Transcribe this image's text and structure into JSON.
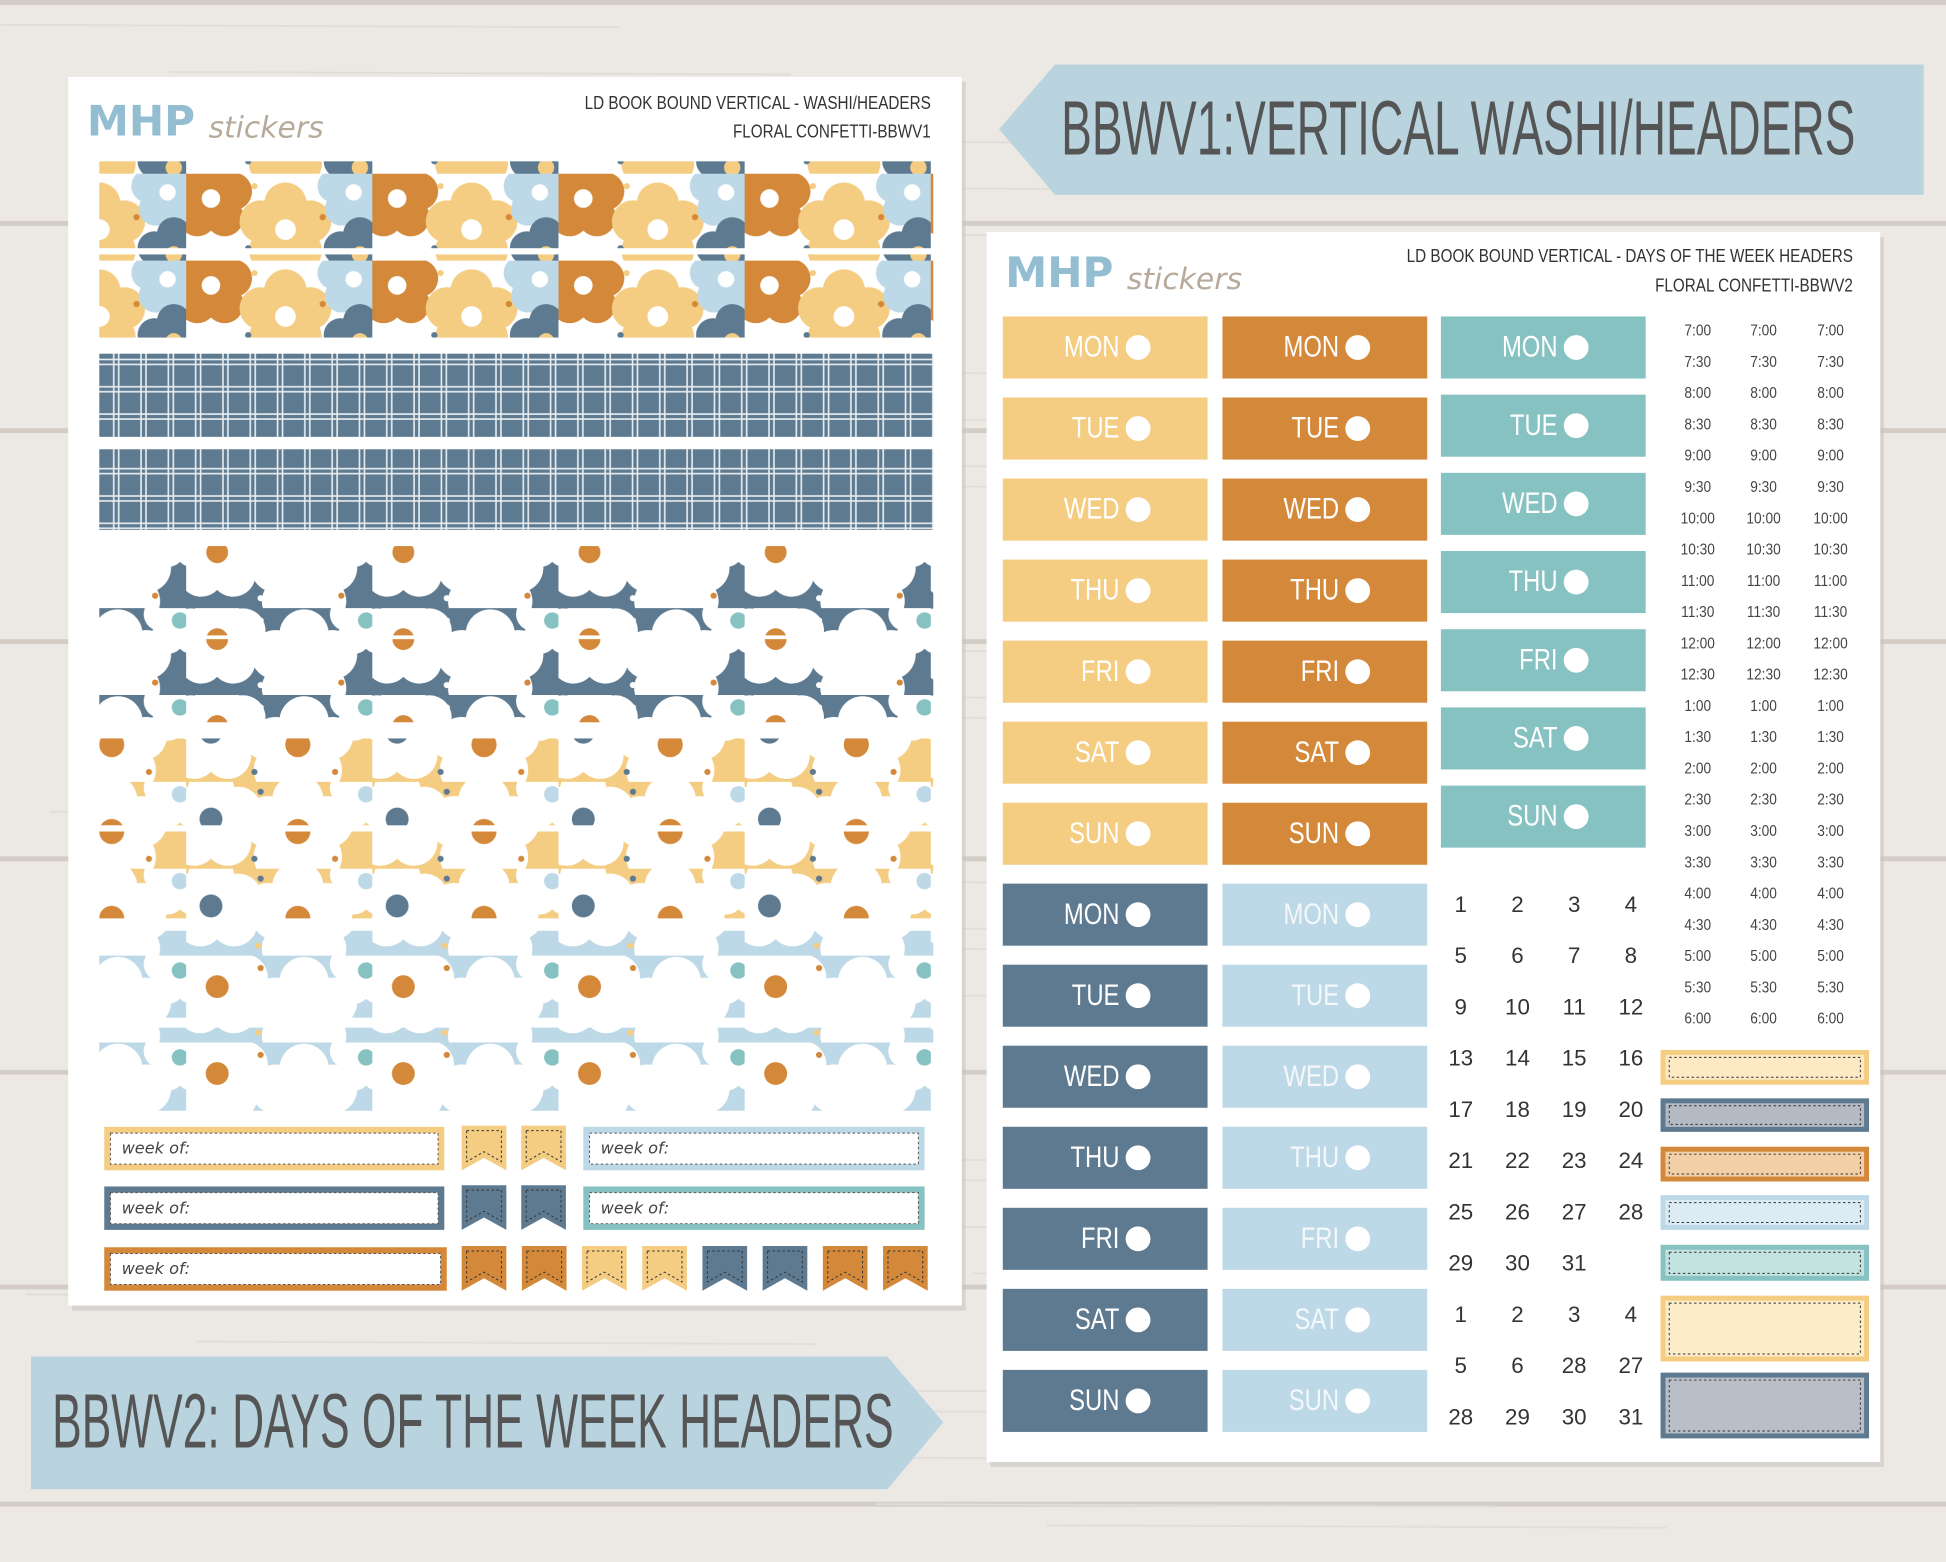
{
  "banners": [
    "BBWV1:VERTICAL WASHI/HEADERS",
    "BBWV2: DAYS OF THE WEEK HEADERS"
  ],
  "sheet1": {
    "logo": {
      "brand": "MHP",
      "script": "stickers"
    },
    "title": [
      "LD BOOK BOUND VERTICAL - WASHI/HEADERS",
      "FLORAL CONFETTI-BBWV1"
    ],
    "week_labels": [
      "week of:",
      "week of:",
      "week of:",
      "week of:",
      "week of:"
    ]
  },
  "sheet2": {
    "logo": {
      "brand": "MHP",
      "script": "stickers"
    },
    "title": [
      "LD BOOK BOUND VERTICAL - DAYS OF THE WEEK HEADERS",
      "FLORAL CONFETTI-BBWV2"
    ],
    "days": [
      "MON",
      "TUE",
      "WED",
      "THU",
      "FRI",
      "SAT",
      "SUN"
    ],
    "times": [
      "7:00",
      "7:30",
      "8:00",
      "8:30",
      "9:00",
      "9:30",
      "10:00",
      "10:30",
      "11:00",
      "11:30",
      "12:00",
      "12:30",
      "1:00",
      "1:30",
      "2:00",
      "2:30",
      "3:00",
      "3:30",
      "4:00",
      "4:30",
      "5:00",
      "5:30",
      "6:00"
    ],
    "dates": [
      [
        1,
        2,
        3,
        4
      ],
      [
        5,
        6,
        7,
        8
      ],
      [
        9,
        10,
        11,
        12
      ],
      [
        13,
        14,
        15,
        16
      ],
      [
        17,
        18,
        19,
        20
      ],
      [
        21,
        22,
        23,
        24
      ],
      [
        25,
        26,
        27,
        28
      ],
      [
        29,
        30,
        31
      ],
      [
        1,
        2,
        3,
        4
      ],
      [
        5,
        6,
        28,
        27
      ],
      [
        28,
        29,
        30,
        31
      ]
    ]
  }
}
